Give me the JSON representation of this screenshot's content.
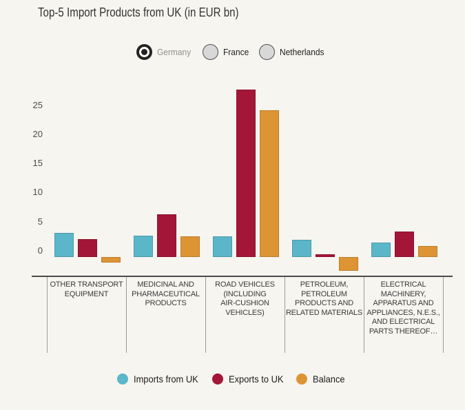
{
  "title": "Top-5 Import Products from UK (in EUR bn)",
  "region_selector": {
    "options": [
      {
        "label": "Germany",
        "selected": true
      },
      {
        "label": "France",
        "selected": false
      },
      {
        "label": "Netherlands",
        "selected": false
      }
    ]
  },
  "chart_data": {
    "type": "bar",
    "title": "Top-5 Import Products from UK (in EUR bn)",
    "categories": [
      "OTHER TRANSPORT EQUIPMENT",
      "MEDICINAL AND PHARMACEUTICAL PRODUCTS",
      "ROAD VEHICLES (INCLUDING AIR-CUSHION VEHICLES)",
      "PETROLEUM, PETROLEUM PRODUCTS AND RELATED MATERIALS",
      "ELECTRICAL MACHINERY, APPARATUS AND APPLIANCES, N.E.S., AND ELECTRICAL PARTS THEREOF…"
    ],
    "category_label_lines": [
      [
        "OTHER TRANSPORT",
        "EQUIPMENT"
      ],
      [
        "MEDICINAL AND",
        "PHARMACEUTICAL",
        "PRODUCTS"
      ],
      [
        "ROAD VEHICLES",
        "(INCLUDING",
        "AIR-CUSHION",
        "VEHICLES)"
      ],
      [
        "PETROLEUM,",
        "PETROLEUM",
        "PRODUCTS AND",
        "RELATED MATERIALS"
      ],
      [
        "ELECTRICAL",
        "MACHINERY,",
        "APPARATUS AND",
        "APPLIANCES, N.E.S.,",
        "AND ELECTRICAL",
        "PARTS THEREOF…"
      ]
    ],
    "series": [
      {
        "name": "Imports from UK",
        "color": "#5bb6c9",
        "values": [
          4.1,
          3.7,
          3.5,
          2.9,
          2.5
        ]
      },
      {
        "name": "Exports to UK",
        "color": "#a31638",
        "values": [
          3.1,
          7.3,
          28.7,
          0.5,
          4.4
        ]
      },
      {
        "name": "Balance",
        "color": "#dd9434",
        "values": [
          -1.0,
          3.6,
          25.2,
          -2.4,
          1.9
        ]
      }
    ],
    "y_axis": {
      "ticks": [
        0,
        5,
        10,
        15,
        20,
        25
      ],
      "range": [
        -3,
        29
      ]
    },
    "grid": false,
    "legend_position": "bottom"
  },
  "colors": {
    "background": "#f7f5f0",
    "imports": "#5bb6c9",
    "exports": "#a31638",
    "balance": "#dd9434",
    "axis_line": "#4a4a4a",
    "divider": "#9b9b9b",
    "tick_text": "#4b4b4b",
    "title_text": "#333333",
    "selected_radio_label": "#8f8f8f"
  }
}
